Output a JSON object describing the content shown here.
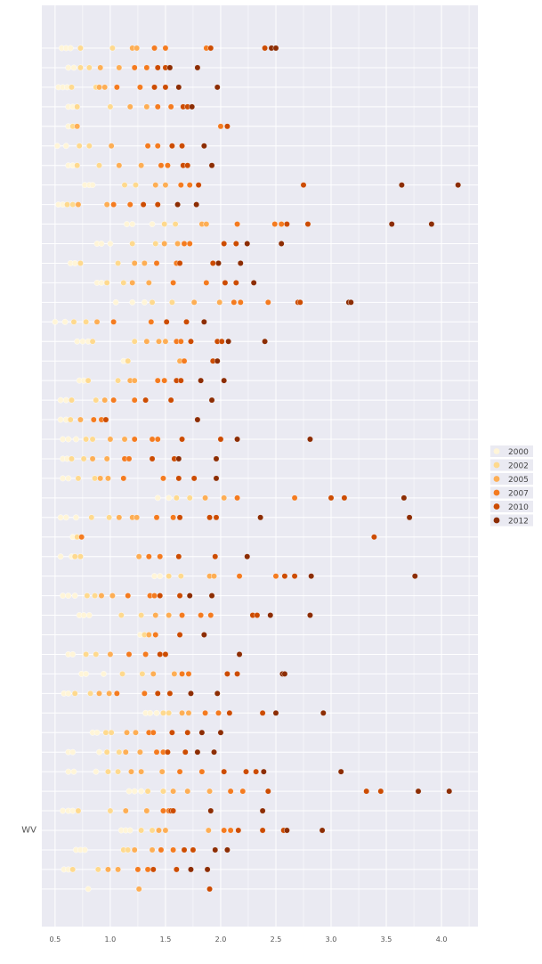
{
  "chart_data": {
    "type": "scatter",
    "title": "",
    "xlabel": "",
    "ylabel": "",
    "xlim": [
      0.38,
      4.33
    ],
    "x_ticks": [
      "0.5",
      "1.0",
      "1.5",
      "2.0",
      "2.5",
      "3.0",
      "3.5",
      "4.0"
    ],
    "grid": true,
    "legend_position": "right",
    "legend": {
      "title": "",
      "entries": [
        "2000",
        "2002",
        "2005",
        "2007",
        "2010",
        "2012"
      ]
    },
    "colors": {
      "background": "#eaeaf2",
      "grid": "#ffffff",
      "palette": [
        "#fff5d8",
        "#fed98e",
        "#fdae55",
        "#f47b20",
        "#cc4c02",
        "#8c2d04"
      ]
    },
    "rows": [
      {
        "label": "",
        "values": [
          0.56,
          0.6,
          0.64,
          0.73,
          1.02,
          1.2,
          1.24,
          1.4,
          1.5,
          1.87,
          1.91,
          2.4,
          2.46,
          2.5
        ]
      },
      {
        "label": "",
        "values": [
          0.62,
          0.67,
          0.73,
          0.81,
          0.91,
          1.08,
          1.22,
          1.33,
          1.43,
          1.5,
          1.54,
          1.79
        ]
      },
      {
        "label": "",
        "values": [
          0.53,
          0.57,
          0.61,
          0.65,
          0.87,
          0.9,
          0.95,
          1.06,
          1.27,
          1.4,
          1.5,
          1.62,
          1.97
        ]
      },
      {
        "label": "",
        "values": [
          0.62,
          0.66,
          0.7,
          1.0,
          1.18,
          1.33,
          1.43,
          1.55,
          1.66,
          1.7,
          1.74
        ]
      },
      {
        "label": "",
        "values": [
          0.62,
          0.66,
          0.7,
          2.0,
          2.06
        ]
      },
      {
        "label": "",
        "values": [
          0.52,
          0.6,
          0.72,
          0.81,
          1.01,
          1.34,
          1.43,
          1.56,
          1.65,
          1.85
        ]
      },
      {
        "label": "",
        "values": [
          0.62,
          0.66,
          0.7,
          0.9,
          1.08,
          1.28,
          1.46,
          1.52,
          1.66,
          1.7,
          1.92
        ]
      },
      {
        "label": "",
        "values": [
          0.77,
          0.81,
          0.84,
          1.13,
          1.23,
          1.41,
          1.5,
          1.64,
          1.72,
          1.8,
          2.75,
          3.64,
          4.15
        ]
      },
      {
        "label": "",
        "values": [
          0.53,
          0.57,
          0.61,
          0.66,
          0.71,
          0.97,
          1.03,
          1.18,
          1.3,
          1.43,
          1.61,
          1.78
        ]
      },
      {
        "label": "",
        "values": [
          1.15,
          1.2,
          1.38,
          1.49,
          1.59,
          1.83,
          1.87,
          2.15,
          2.49,
          2.55,
          2.6,
          2.79,
          3.55,
          3.91
        ]
      },
      {
        "label": "",
        "values": [
          0.88,
          0.92,
          1.0,
          1.2,
          1.41,
          1.49,
          1.61,
          1.67,
          1.72,
          2.03,
          2.14,
          2.24,
          2.55
        ]
      },
      {
        "label": "",
        "values": [
          0.64,
          0.68,
          0.73,
          1.07,
          1.22,
          1.31,
          1.42,
          1.6,
          1.63,
          1.93,
          1.98,
          2.18
        ]
      },
      {
        "label": "",
        "values": [
          0.88,
          0.92,
          0.97,
          1.12,
          1.2,
          1.35,
          1.57,
          1.87,
          2.04,
          2.14,
          2.3
        ]
      },
      {
        "label": "",
        "values": [
          1.05,
          1.2,
          1.31,
          1.38,
          1.56,
          1.76,
          1.99,
          2.12,
          2.18,
          2.43,
          2.7,
          2.72,
          3.16,
          3.18
        ]
      },
      {
        "label": "",
        "values": [
          0.5,
          0.59,
          0.67,
          0.78,
          0.88,
          1.03,
          1.37,
          1.51,
          1.69,
          1.85
        ]
      },
      {
        "label": "",
        "values": [
          0.7,
          0.75,
          0.8,
          0.84,
          1.22,
          1.33,
          1.44,
          1.5,
          1.6,
          1.64,
          1.73,
          1.97,
          2.01,
          2.07,
          2.4
        ]
      },
      {
        "label": "",
        "values": [
          1.12,
          1.16,
          1.63,
          1.67,
          1.93,
          1.97
        ]
      },
      {
        "label": "",
        "values": [
          0.72,
          0.76,
          0.8,
          1.07,
          1.18,
          1.22,
          1.43,
          1.49,
          1.6,
          1.64,
          1.82,
          2.03
        ]
      },
      {
        "label": "",
        "values": [
          0.55,
          0.6,
          0.65,
          0.87,
          0.95,
          1.03,
          1.22,
          1.32,
          1.55,
          1.92
        ]
      },
      {
        "label": "",
        "values": [
          0.55,
          0.6,
          0.64,
          0.73,
          0.85,
          0.92,
          0.96,
          1.79
        ]
      },
      {
        "label": "",
        "values": [
          0.57,
          0.62,
          0.69,
          0.78,
          0.84,
          1.0,
          1.13,
          1.22,
          1.38,
          1.43,
          1.65,
          2.0,
          2.15,
          2.81
        ]
      },
      {
        "label": "",
        "values": [
          0.57,
          0.61,
          0.65,
          0.76,
          0.84,
          0.97,
          1.13,
          1.17,
          1.38,
          1.58,
          1.62,
          1.96
        ]
      },
      {
        "label": "",
        "values": [
          0.57,
          0.62,
          0.71,
          0.86,
          0.91,
          0.98,
          1.12,
          1.48,
          1.62,
          1.76,
          1.96
        ]
      },
      {
        "label": "",
        "values": [
          1.43,
          1.53,
          1.6,
          1.72,
          1.86,
          2.03,
          2.15,
          2.67,
          3.0,
          3.12,
          3.66
        ]
      },
      {
        "label": "",
        "values": [
          0.55,
          0.6,
          0.69,
          0.83,
          0.99,
          1.08,
          1.2,
          1.24,
          1.42,
          1.57,
          1.63,
          1.9,
          1.96,
          2.36,
          3.71
        ]
      },
      {
        "label": "",
        "values": [
          0.66,
          0.7,
          0.74,
          3.39
        ]
      },
      {
        "label": "",
        "values": [
          0.55,
          0.65,
          0.68,
          0.73,
          1.26,
          1.35,
          1.45,
          1.62,
          1.95,
          2.24
        ]
      },
      {
        "label": "",
        "values": [
          1.4,
          1.45,
          1.53,
          1.64,
          1.9,
          1.94,
          2.17,
          2.5,
          2.58,
          2.67,
          2.82,
          3.76
        ]
      },
      {
        "label": "",
        "values": [
          0.57,
          0.62,
          0.68,
          0.79,
          0.86,
          0.92,
          1.02,
          1.16,
          1.36,
          1.4,
          1.45,
          1.63,
          1.72,
          1.92
        ]
      },
      {
        "label": "",
        "values": [
          0.72,
          0.76,
          0.81,
          1.1,
          1.28,
          1.41,
          1.53,
          1.65,
          1.82,
          1.91,
          2.29,
          2.33,
          2.45,
          2.81
        ]
      },
      {
        "label": "",
        "values": [
          1.27,
          1.31,
          1.35,
          1.41,
          1.63,
          1.85
        ]
      },
      {
        "label": "",
        "values": [
          0.62,
          0.66,
          0.78,
          0.87,
          1.0,
          1.17,
          1.32,
          1.45,
          1.5,
          2.17
        ]
      },
      {
        "label": "",
        "values": [
          0.74,
          0.78,
          0.94,
          1.11,
          1.29,
          1.39,
          1.58,
          1.65,
          1.71,
          2.06,
          2.15,
          2.56,
          2.58
        ]
      },
      {
        "label": "",
        "values": [
          0.58,
          0.62,
          0.68,
          0.82,
          0.9,
          0.99,
          1.06,
          1.31,
          1.43,
          1.54,
          1.73,
          1.97
        ]
      },
      {
        "label": "",
        "values": [
          1.32,
          1.36,
          1.42,
          1.48,
          1.53,
          1.65,
          1.71,
          1.86,
          1.98,
          2.08,
          2.38,
          2.5,
          2.93
        ]
      },
      {
        "label": "",
        "values": [
          0.84,
          0.88,
          0.96,
          1.01,
          1.15,
          1.23,
          1.35,
          1.39,
          1.56,
          1.7,
          1.83,
          2.0
        ]
      },
      {
        "label": "",
        "values": [
          0.62,
          0.66,
          0.9,
          0.97,
          1.08,
          1.14,
          1.27,
          1.42,
          1.48,
          1.52,
          1.68,
          1.79,
          1.94
        ]
      },
      {
        "label": "",
        "values": [
          0.62,
          0.67,
          0.87,
          0.98,
          1.07,
          1.19,
          1.28,
          1.47,
          1.63,
          1.83,
          2.03,
          2.23,
          2.32,
          2.39,
          3.09
        ]
      },
      {
        "label": "",
        "values": [
          1.17,
          1.22,
          1.28,
          1.34,
          1.48,
          1.57,
          1.7,
          1.9,
          2.09,
          2.2,
          2.43,
          3.32,
          3.45,
          3.79,
          4.07
        ]
      },
      {
        "label": "",
        "values": [
          0.57,
          0.62,
          0.66,
          0.71,
          1.0,
          1.14,
          1.33,
          1.48,
          1.53,
          1.55,
          1.57,
          1.91,
          2.38
        ]
      },
      {
        "label": "WV",
        "values": [
          1.1,
          1.14,
          1.18,
          1.28,
          1.38,
          1.44,
          1.5,
          1.89,
          2.03,
          2.09,
          2.16,
          2.38,
          2.57,
          2.6,
          2.92
        ]
      },
      {
        "label": "",
        "values": [
          0.69,
          0.73,
          0.77,
          1.12,
          1.16,
          1.22,
          1.38,
          1.46,
          1.57,
          1.67,
          1.75,
          1.95,
          2.06
        ]
      },
      {
        "label": "",
        "values": [
          0.58,
          0.62,
          0.66,
          0.89,
          0.98,
          1.07,
          1.25,
          1.34,
          1.39,
          1.6,
          1.73,
          1.88
        ]
      },
      {
        "label": "",
        "values": [
          0.8,
          1.26,
          1.9
        ]
      }
    ]
  }
}
